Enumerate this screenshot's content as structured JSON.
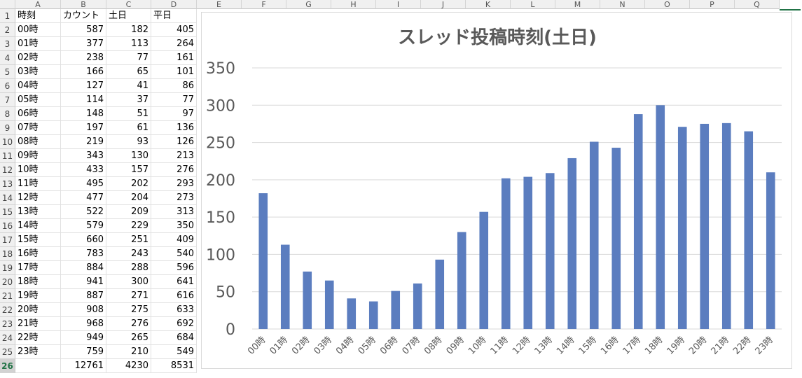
{
  "sheet": {
    "columns": [
      "A",
      "B",
      "C",
      "D",
      "E",
      "F",
      "G",
      "H",
      "I",
      "J",
      "K",
      "L",
      "M",
      "N",
      "O",
      "P",
      "Q"
    ],
    "header_row": [
      "時刻",
      "カウント",
      "土日",
      "平日"
    ],
    "rows": [
      [
        "00時",
        "587",
        "182",
        "405"
      ],
      [
        "01時",
        "377",
        "113",
        "264"
      ],
      [
        "02時",
        "238",
        "77",
        "161"
      ],
      [
        "03時",
        "166",
        "65",
        "101"
      ],
      [
        "04時",
        "127",
        "41",
        "86"
      ],
      [
        "05時",
        "114",
        "37",
        "77"
      ],
      [
        "06時",
        "148",
        "51",
        "97"
      ],
      [
        "07時",
        "197",
        "61",
        "136"
      ],
      [
        "08時",
        "219",
        "93",
        "126"
      ],
      [
        "09時",
        "343",
        "130",
        "213"
      ],
      [
        "10時",
        "433",
        "157",
        "276"
      ],
      [
        "11時",
        "495",
        "202",
        "293"
      ],
      [
        "12時",
        "477",
        "204",
        "273"
      ],
      [
        "13時",
        "522",
        "209",
        "313"
      ],
      [
        "14時",
        "579",
        "229",
        "350"
      ],
      [
        "15時",
        "660",
        "251",
        "409"
      ],
      [
        "16時",
        "783",
        "243",
        "540"
      ],
      [
        "17時",
        "884",
        "288",
        "596"
      ],
      [
        "18時",
        "941",
        "300",
        "641"
      ],
      [
        "19時",
        "887",
        "271",
        "616"
      ],
      [
        "20時",
        "908",
        "275",
        "633"
      ],
      [
        "21時",
        "968",
        "276",
        "692"
      ],
      [
        "22時",
        "949",
        "265",
        "684"
      ],
      [
        "23時",
        "759",
        "210",
        "549"
      ]
    ],
    "totals_row": [
      "",
      "12761",
      "4230",
      "8531"
    ],
    "selected_row": "26"
  },
  "chart_data": {
    "type": "bar",
    "title": "スレッド投稿時刻(土日)",
    "xlabel": "",
    "ylabel": "",
    "categories": [
      "00時",
      "01時",
      "02時",
      "03時",
      "04時",
      "05時",
      "06時",
      "07時",
      "08時",
      "09時",
      "10時",
      "11時",
      "12時",
      "13時",
      "14時",
      "15時",
      "16時",
      "17時",
      "18時",
      "19時",
      "20時",
      "21時",
      "22時",
      "23時"
    ],
    "values": [
      182,
      113,
      77,
      65,
      41,
      37,
      51,
      61,
      93,
      130,
      157,
      202,
      204,
      209,
      229,
      251,
      243,
      288,
      300,
      271,
      275,
      276,
      265,
      210
    ],
    "ylim": [
      0,
      350
    ],
    "yticks": [
      0,
      50,
      100,
      150,
      200,
      250,
      300,
      350
    ],
    "grid": true,
    "legend": "none",
    "bar_color": "#5b7dbf"
  }
}
